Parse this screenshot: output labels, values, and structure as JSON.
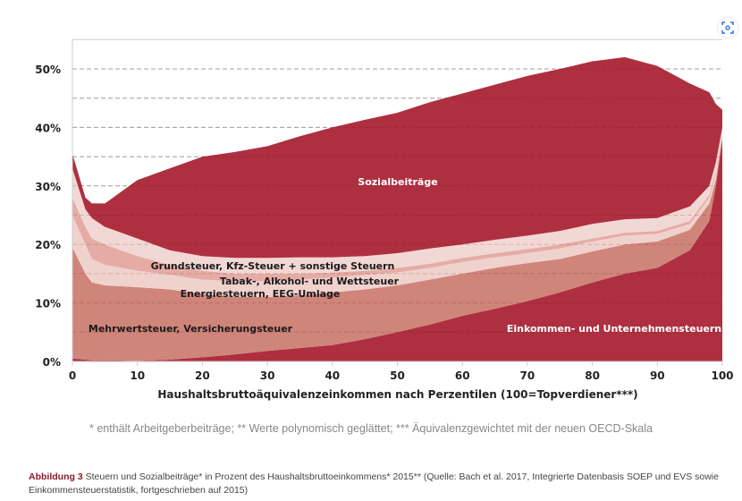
{
  "chart_data": {
    "type": "area",
    "stacked": true,
    "value_mode": "cumulative_top_percent",
    "x": [
      0,
      2,
      3,
      5,
      10,
      15,
      20,
      25,
      30,
      35,
      40,
      45,
      50,
      55,
      60,
      65,
      70,
      75,
      80,
      85,
      90,
      95,
      98,
      99,
      100
    ],
    "series": [
      {
        "name": "Einkommen- und Unternehmensteuern",
        "color": "#ae3040",
        "values": [
          0.5,
          0.3,
          0.2,
          0.2,
          0.1,
          0.3,
          0.7,
          1.2,
          1.8,
          2.3,
          2.8,
          3.8,
          5,
          6.3,
          7.8,
          9,
          10.3,
          11.8,
          13.5,
          15,
          16,
          19,
          24,
          30,
          38
        ]
      },
      {
        "name": "Mehrwertsteuer, Versicherungsteuer",
        "color": "#d0857b",
        "values": [
          19.5,
          15,
          13.5,
          13,
          12.7,
          12.3,
          11.5,
          11,
          11,
          11.3,
          11.8,
          12.3,
          13,
          14,
          15,
          16,
          16.8,
          17.5,
          18.8,
          20,
          20.5,
          22.5,
          27,
          31,
          38.5
        ]
      },
      {
        "name": "Energiesteuern, EEG-Umlage",
        "color": "#f0d2cd",
        "values": [
          25,
          20,
          17.5,
          16.5,
          15.5,
          14.8,
          14,
          13.7,
          13.7,
          14,
          14.3,
          14.8,
          15.2,
          16,
          17,
          17.8,
          18.5,
          19.3,
          20.5,
          21.5,
          21.8,
          23.5,
          28,
          32,
          39
        ]
      },
      {
        "name": "Tabak-, Alkohol- und Wettsteuer",
        "color": "#e5aca6",
        "values": [
          28,
          23,
          21,
          20,
          18,
          16.5,
          15.5,
          15,
          15,
          15,
          15.2,
          15.5,
          16,
          16.7,
          17.7,
          18.5,
          19.2,
          20,
          21,
          22,
          22.3,
          24,
          28.5,
          32.5,
          39.2
        ]
      },
      {
        "name": "Grundsteuer, Kfz-Steuer + sonstige Steuern",
        "color": "#f2d8d4",
        "values": [
          33,
          26,
          24.5,
          23,
          21,
          19,
          18,
          17.7,
          17.7,
          17.8,
          17.8,
          18,
          18.5,
          19.3,
          20,
          20.8,
          21.5,
          22.3,
          23.5,
          24.3,
          24.5,
          26.5,
          30,
          34,
          40
        ]
      },
      {
        "name": "Sozialbeiträge",
        "color": "#ae3040",
        "values": [
          35.5,
          28,
          27,
          27,
          31,
          33,
          35,
          35.8,
          36.8,
          38.5,
          40,
          41.3,
          42.5,
          44.3,
          45.8,
          47.3,
          48.8,
          50,
          51.3,
          52,
          50.5,
          47.5,
          46,
          44,
          43
        ]
      }
    ],
    "xlabel": "Haushaltsbruttoäquivalenzeinkommen nach Perzentilen (100=Topverdiener***)",
    "ylabel": "",
    "xlim": [
      0,
      100
    ],
    "ylim": [
      0,
      55
    ],
    "xticks": [
      "0",
      "10",
      "20",
      "30",
      "40",
      "50",
      "60",
      "70",
      "80",
      "90",
      "100"
    ],
    "yticks": [
      "0%",
      "10%",
      "20%",
      "30%",
      "40%",
      "50%"
    ],
    "grid": true,
    "legend": "inline labels"
  },
  "footnote": "* enthält Arbeitgeberbeiträge; ** Werte polynomisch geglättet; *** Äquivalenzgewichtet mit der neuen OECD-Skala",
  "caption": {
    "label": "Abbildung 3",
    "text": " Steuern und Sozialbeiträge* in Prozent des Haushaltsbruttoeinkommens* 2015** (Quelle: Bach et al. 2017, Integrierte Datenbasis SOEP und EVS sowie Einkommensteuerstatistik, fortgeschrieben auf 2015)"
  }
}
